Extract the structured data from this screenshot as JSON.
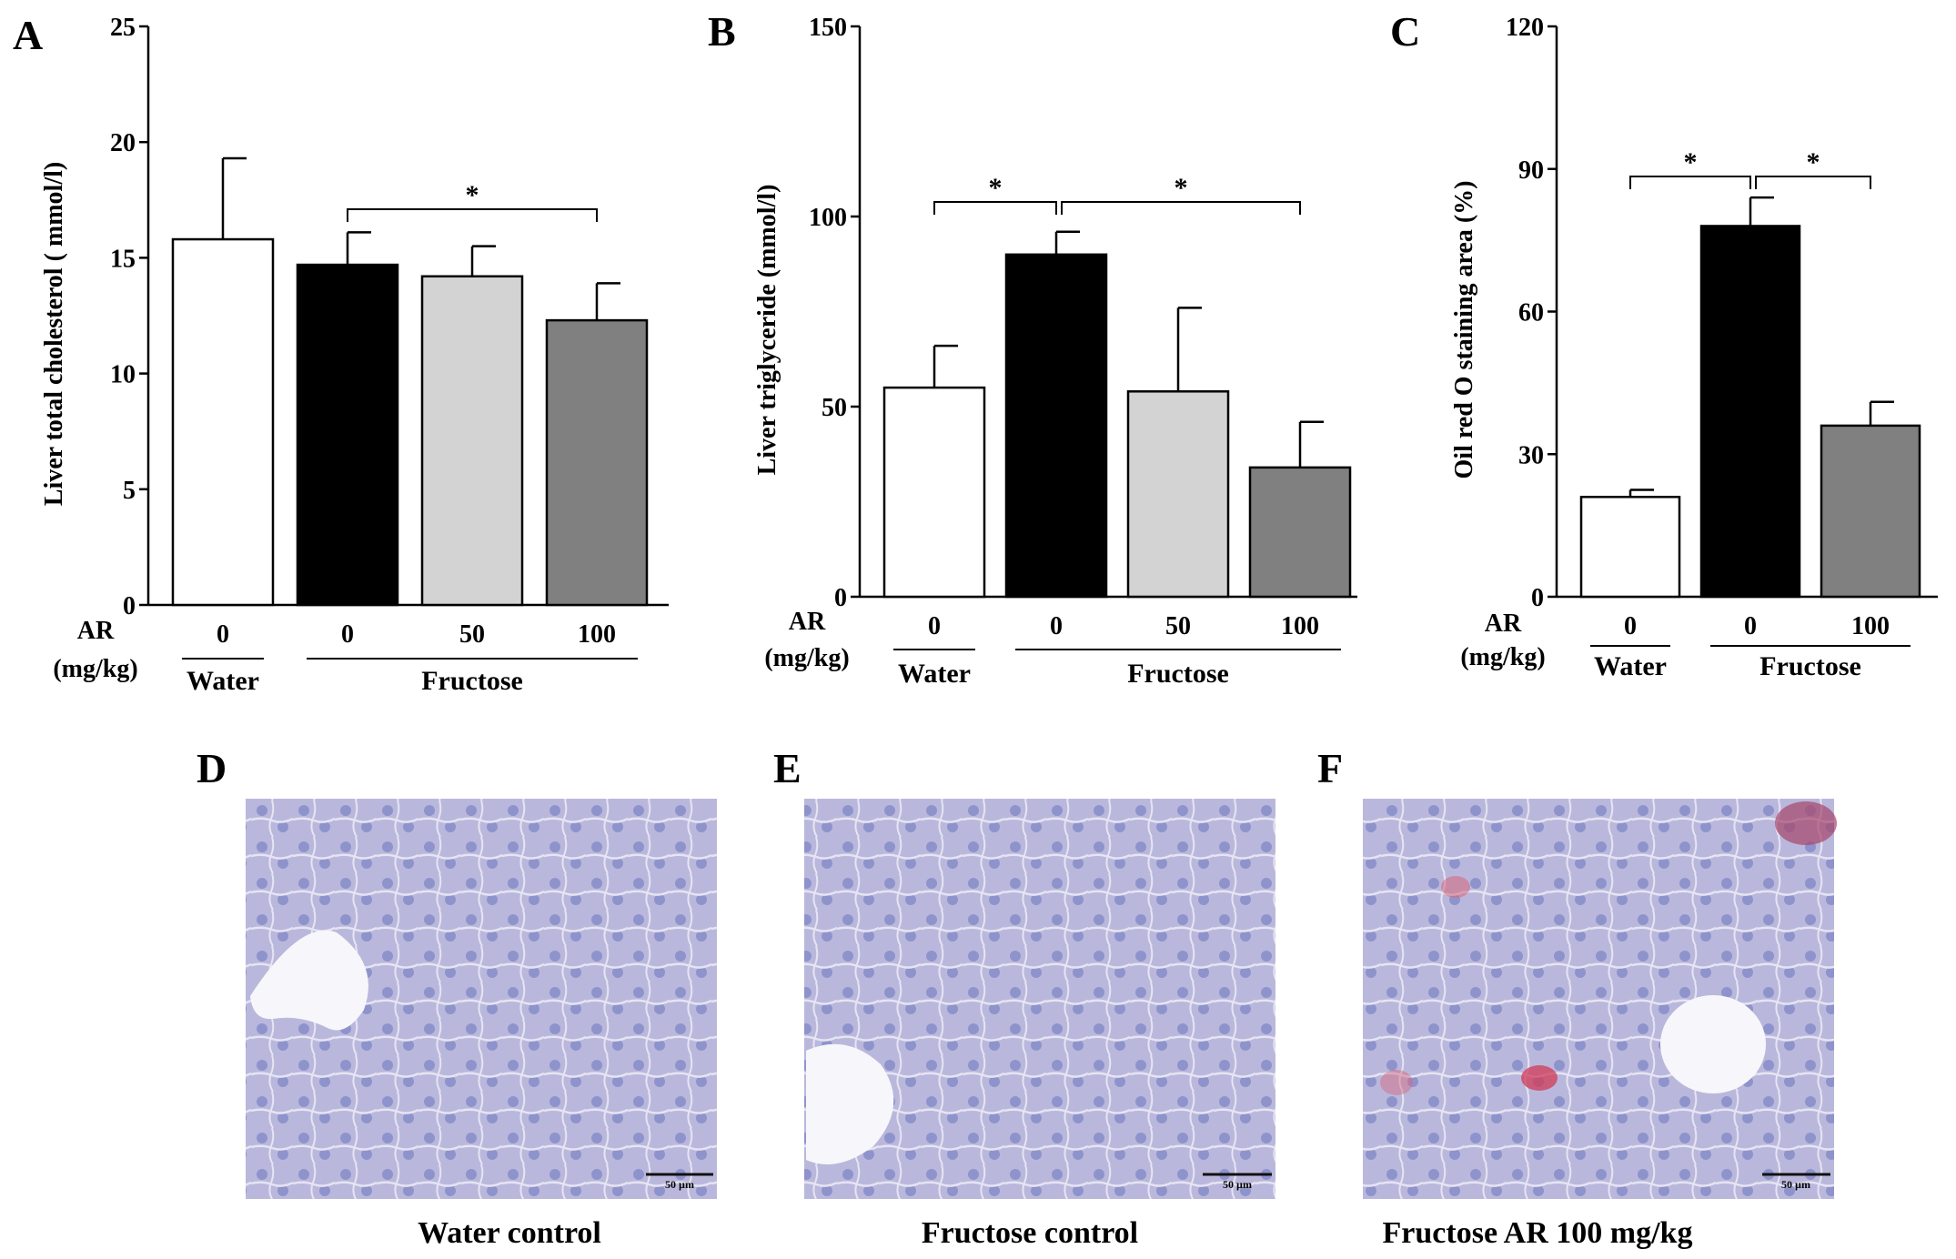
{
  "chart_data": [
    {
      "panel": "A",
      "type": "bar",
      "ylabel": "Liver total cholesterol ( mmol/l)",
      "ylim": [
        0,
        25
      ],
      "yticks": [
        "0",
        "5",
        "10",
        "15",
        "20",
        "25"
      ],
      "ar_label": [
        "AR",
        "(mg/kg)"
      ],
      "categories": [
        "0",
        "0",
        "50",
        "100"
      ],
      "groups": [
        {
          "label": "Water",
          "bars": [
            0
          ]
        },
        {
          "label": "Fructose",
          "bars": [
            1,
            2,
            3
          ]
        }
      ],
      "values": [
        15.8,
        14.7,
        14.2,
        12.3
      ],
      "errors": [
        3.5,
        1.4,
        1.3,
        1.6
      ],
      "colors": [
        "#ffffff",
        "#000000",
        "#d3d3d3",
        "#808080"
      ],
      "significance": [
        {
          "from": 1,
          "to": 3,
          "label": "*"
        }
      ]
    },
    {
      "panel": "B",
      "type": "bar",
      "ylabel": "Liver triglyceride (mmol/l)",
      "ylim": [
        0,
        150
      ],
      "yticks": [
        "0",
        "50",
        "100",
        "150"
      ],
      "ar_label": [
        "AR",
        "(mg/kg)"
      ],
      "categories": [
        "0",
        "0",
        "50",
        "100"
      ],
      "groups": [
        {
          "label": "Water",
          "bars": [
            0
          ]
        },
        {
          "label": "Fructose",
          "bars": [
            1,
            2,
            3
          ]
        }
      ],
      "values": [
        55,
        90,
        54,
        34
      ],
      "errors": [
        11,
        6,
        22,
        12
      ],
      "colors": [
        "#ffffff",
        "#000000",
        "#d3d3d3",
        "#808080"
      ],
      "significance": [
        {
          "from": 0,
          "to": 1,
          "label": "*"
        },
        {
          "from": 1,
          "to": 3,
          "label": "*"
        }
      ]
    },
    {
      "panel": "C",
      "type": "bar",
      "ylabel": "Oil red O staining area (%)",
      "ylim": [
        0,
        120
      ],
      "yticks": [
        "0",
        "30",
        "60",
        "90",
        "120"
      ],
      "ar_label": [
        "AR",
        "(mg/kg)"
      ],
      "categories": [
        "0",
        "0",
        "100"
      ],
      "groups": [
        {
          "label": "Water",
          "bars": [
            0
          ]
        },
        {
          "label": "Fructose",
          "bars": [
            1,
            2
          ]
        }
      ],
      "values": [
        21,
        78,
        36
      ],
      "errors": [
        1.5,
        6,
        5
      ],
      "colors": [
        "#ffffff",
        "#000000",
        "#808080"
      ],
      "significance": [
        {
          "from": 0,
          "to": 1,
          "label": "*"
        },
        {
          "from": 1,
          "to": 2,
          "label": "*"
        }
      ]
    }
  ],
  "micrographs": [
    {
      "panel": "D",
      "caption": "Water control",
      "scale_bar": "50 µm",
      "stain": "water"
    },
    {
      "panel": "E",
      "caption": "Fructose control",
      "scale_bar": "50 µm",
      "stain": "fructose"
    },
    {
      "panel": "F",
      "caption": "Fructose AR 100 mg/kg",
      "scale_bar": "50 µm",
      "stain": "ar100"
    }
  ]
}
